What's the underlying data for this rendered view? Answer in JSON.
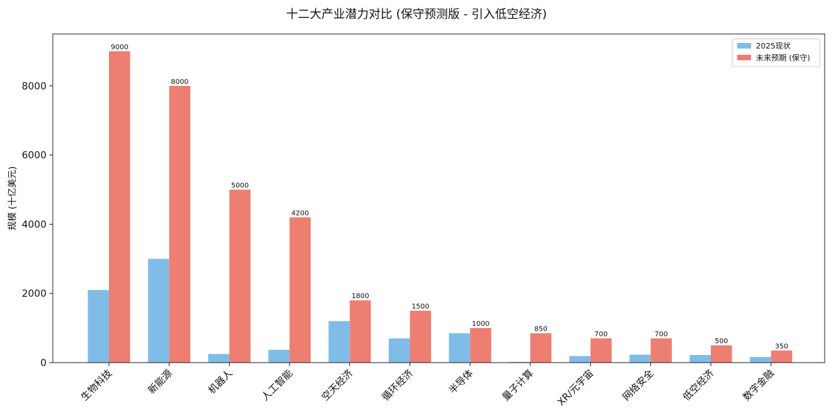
{
  "chart_data": {
    "type": "bar",
    "title": "十二大产业潜力对比 (保守预测版 - 引入低空经济)",
    "ylabel": "规模 (十亿美元)",
    "xlabel": "",
    "ylim": [
      0,
      9500
    ],
    "yticks": [
      0,
      2000,
      4000,
      6000,
      8000
    ],
    "grid": false,
    "legend_position": "top-right",
    "categories": [
      "生物科技",
      "新能源",
      "机器人",
      "人工智能",
      "空天经济",
      "循环经济",
      "半导体",
      "量子计算",
      "XR/元宇宙",
      "网络安全",
      "低空经济",
      "数字金融"
    ],
    "series": [
      {
        "name": "2025现状",
        "color": "#7fbde8",
        "values": [
          2100,
          3000,
          250,
          370,
          1200,
          700,
          850,
          20,
          190,
          230,
          220,
          160
        ]
      },
      {
        "name": "未来预期 (保守)",
        "color": "#ec7f72",
        "values": [
          9000,
          8000,
          5000,
          4200,
          1800,
          1500,
          1000,
          850,
          700,
          700,
          500,
          350
        ]
      }
    ],
    "data_labels_series": 1
  }
}
